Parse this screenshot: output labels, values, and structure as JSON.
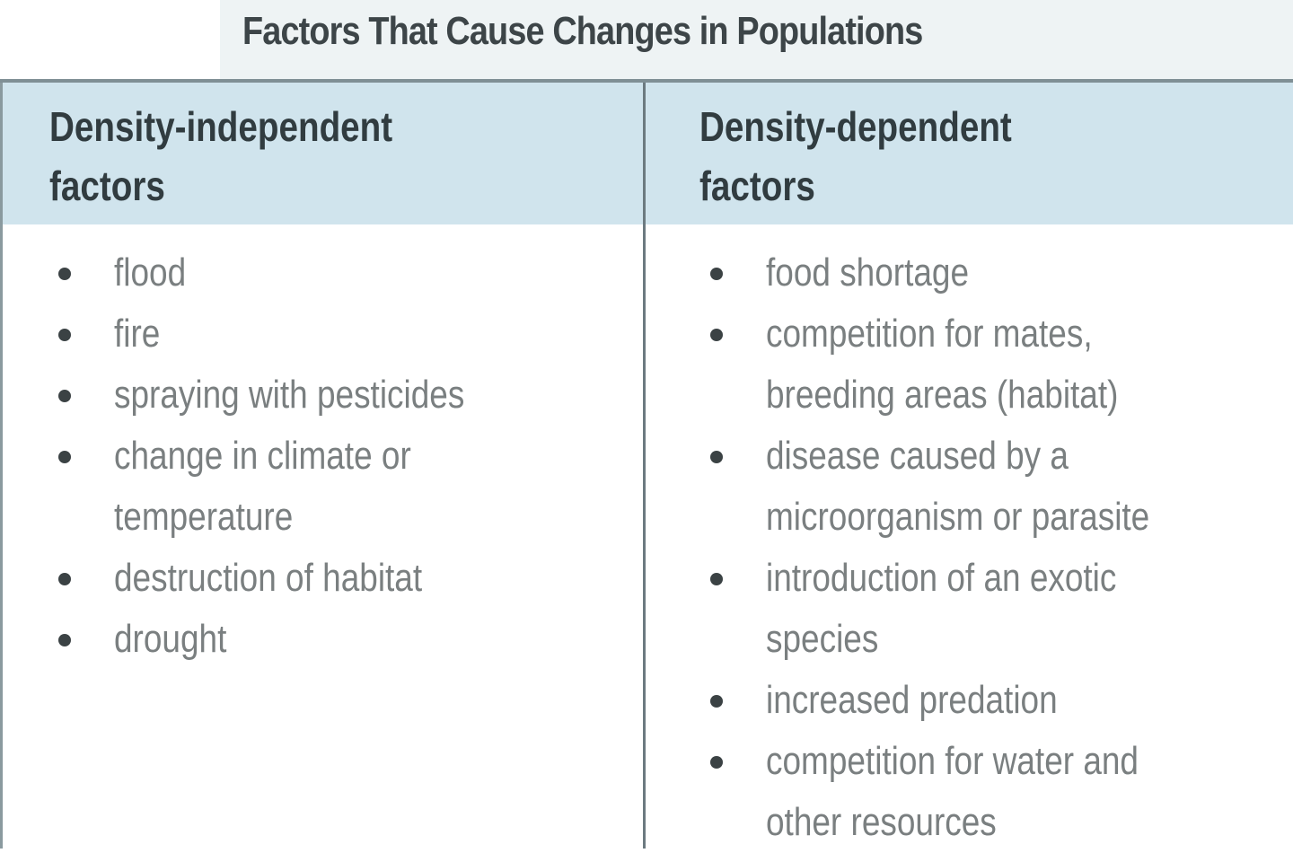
{
  "title": "Factors That Cause Changes in Populations",
  "columns": [
    {
      "header": [
        "Density-independent",
        "factors"
      ],
      "items": [
        [
          "flood"
        ],
        [
          "fire"
        ],
        [
          "spraying with pesticides"
        ],
        [
          "change in climate or",
          "temperature"
        ],
        [
          "destruction of habitat"
        ],
        [
          "drought"
        ]
      ]
    },
    {
      "header": [
        "Density-dependent",
        "factors"
      ],
      "items": [
        [
          "food shortage"
        ],
        [
          "competition for mates,",
          "breeding areas (habitat)"
        ],
        [
          "disease caused by a",
          "microorganism or parasite"
        ],
        [
          "introduction of an exotic",
          "species"
        ],
        [
          "increased predation"
        ],
        [
          "competition for water and",
          "other resources"
        ]
      ]
    }
  ],
  "colors": {
    "header_bg": "#d0e4ed",
    "border": "#7f8f95",
    "text": "#313c40",
    "item_text": "#7a7f80"
  }
}
